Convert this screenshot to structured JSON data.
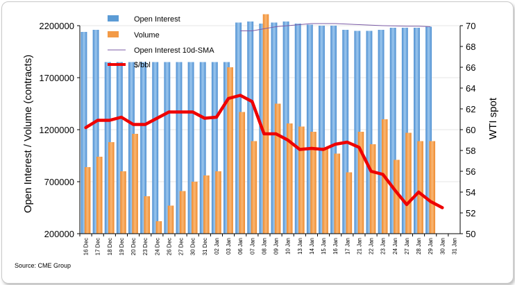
{
  "chart_data": {
    "type": "bar",
    "source": "Source: CME Group",
    "y_left_label": "Open Interest / Volume (contracts)",
    "y_right_label": "WTI spot",
    "y_left_range": [
      200000,
      2200000
    ],
    "y_left_ticks": [
      "2200000",
      "1700000",
      "1200000",
      "700000",
      "200000"
    ],
    "y_right_range": [
      50,
      70
    ],
    "y_right_ticks": [
      "70",
      "68",
      "66",
      "64",
      "62",
      "60",
      "58",
      "56",
      "54",
      "52",
      "50"
    ],
    "categories": [
      "16 Dec",
      "17 Dec",
      "18 Dec",
      "19 Dec",
      "20 Dec",
      "23 Dec",
      "24 Dec",
      "26 Dec",
      "27 Dec",
      "30 Dec",
      "31 Dec",
      "02 Jan",
      "03 Jan",
      "06 Jan",
      "07 Jan",
      "08 Jan",
      "09 Jan",
      "10 Jan",
      "13 Jan",
      "14 Jan",
      "15 Jan",
      "16 Jan",
      "17 Jan",
      "21 Jan",
      "22 Jan",
      "23 Jan",
      "24 Jan",
      "27 Jan",
      "28 Jan",
      "29 Jan",
      "30 Jan",
      "31 Jan"
    ],
    "legend": [
      {
        "name": "Open Interest",
        "color": "#5b9bd5",
        "kind": "bar"
      },
      {
        "name": "Volume",
        "color": "#f39a46",
        "kind": "bar"
      },
      {
        "name": "Open Interest 10d-SMA",
        "color": "#7b5ba6",
        "kind": "line"
      },
      {
        "name": "$/bbl",
        "color": "#ee0000",
        "kind": "line"
      }
    ],
    "series": [
      {
        "name": "Open Interest",
        "axis": "left",
        "values": [
          2140000,
          2160000,
          1850000,
          1850000,
          1850000,
          1850000,
          1850000,
          1850000,
          1850000,
          1850000,
          1850000,
          1850000,
          1850000,
          2230000,
          2240000,
          2220000,
          2230000,
          2240000,
          2220000,
          2210000,
          2200000,
          2200000,
          2160000,
          2150000,
          2150000,
          2160000,
          2180000,
          2180000,
          2180000,
          2190000,
          null,
          null
        ]
      },
      {
        "name": "Volume",
        "axis": "left",
        "values": [
          840000,
          940000,
          1080000,
          800000,
          1160000,
          560000,
          320000,
          470000,
          610000,
          700000,
          760000,
          800000,
          1800000,
          1370000,
          1090000,
          2310000,
          1450000,
          1260000,
          1230000,
          1180000,
          1030000,
          970000,
          790000,
          1180000,
          1060000,
          1300000,
          910000,
          1170000,
          1090000,
          1090000,
          null,
          null
        ]
      },
      {
        "name": "Open Interest 10d-SMA",
        "axis": "left",
        "values": [
          null,
          null,
          null,
          null,
          null,
          null,
          null,
          null,
          null,
          null,
          null,
          null,
          null,
          2150000,
          2150000,
          2170000,
          2190000,
          2200000,
          2210000,
          2220000,
          2220000,
          2220000,
          2215000,
          2210000,
          2205000,
          2200000,
          2197000,
          2195000,
          2195000,
          2190000,
          null,
          null
        ]
      },
      {
        "name": "$/bbl",
        "axis": "right",
        "values": [
          60.2,
          60.9,
          60.9,
          61.2,
          60.5,
          60.5,
          61.1,
          61.7,
          61.7,
          61.7,
          61.1,
          61.2,
          63.0,
          63.3,
          62.7,
          59.6,
          59.6,
          59.0,
          58.1,
          58.2,
          58.1,
          58.6,
          58.8,
          58.3,
          56.0,
          55.7,
          54.2,
          52.8,
          54.0,
          53.1,
          52.5,
          null
        ]
      }
    ]
  }
}
